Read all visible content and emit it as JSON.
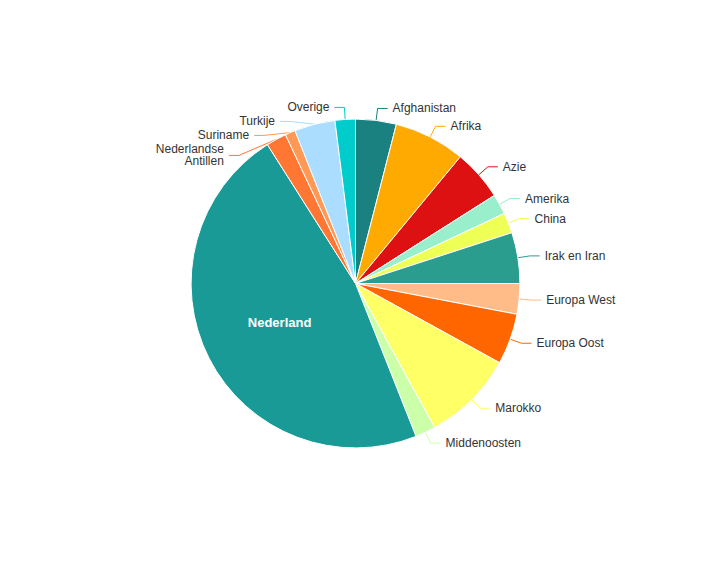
{
  "chart_data": {
    "type": "pie",
    "categories": [
      "Afghanistan",
      "Afrika",
      "Azie",
      "Amerika",
      "China",
      "Irak en Iran",
      "Europa West",
      "Europa Oost",
      "Marokko",
      "Middenoosten",
      "Nederland",
      "Nederlandse\nAntillen",
      "Suriname",
      "Turkije",
      "Overige"
    ],
    "values": [
      4,
      7,
      5,
      2,
      2,
      5,
      3,
      5,
      9,
      2,
      47,
      2,
      1,
      4,
      2
    ],
    "colors": [
      "#1a8080",
      "#ffaa00",
      "#dd1111",
      "#99eecc",
      "#eeff55",
      "#2a9d8f",
      "#ffbb88",
      "#ff6600",
      "#ffff66",
      "#ccffaa",
      "#1a9a96",
      "#ff7733",
      "#ff9955",
      "#aaddff",
      "#00cccc"
    ],
    "legend": false
  }
}
